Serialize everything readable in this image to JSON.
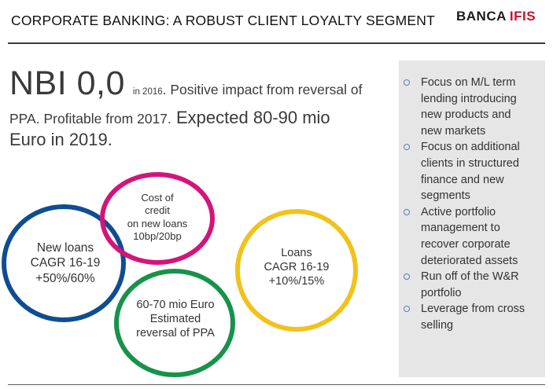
{
  "header": {
    "title": "CORPORATE BANKING: A ROBUST CLIENT LOYALTY SEGMENT",
    "logo_banca": "BANCA",
    "logo_ifis": "IFIS"
  },
  "headline": {
    "nbi": "NBI 0,0",
    "year_note": "in 2016",
    "sentence_1a": ". Positive impact from reversal of",
    "sentence_1b": "PPA. Profitable from 2017.",
    "expected_a": " Expected 80-90 mio",
    "expected_b": "Euro in 2019."
  },
  "circles": {
    "new_loans": {
      "line1": "New loans",
      "line2": "CAGR 16-19",
      "line3": "+50%/60%",
      "color": "#0f4d92"
    },
    "cost_of_credit": {
      "line1": "Cost of",
      "line2": "credit",
      "line3": "on new loans",
      "line4": "10bp/20bp",
      "color": "#d4147a"
    },
    "loans": {
      "line1": "Loans",
      "line2": "CAGR 16-19",
      "line3": "+10%/15%",
      "color": "#f2c21b"
    },
    "reversal": {
      "line1": "60-70 mio Euro",
      "line2": "Estimated",
      "line3": "reversal  of PPA",
      "color": "#17924a"
    }
  },
  "panel": {
    "bullets": [
      [
        "Focus on M/L term",
        "lending introducing",
        "new products and",
        "new markets"
      ],
      [
        "Focus on additional",
        "clients in structured",
        "finance and new",
        "segments"
      ],
      [
        "Active portfolio",
        "management to",
        "recover corporate",
        "deteriorated assets"
      ],
      [
        "Run off of the W&R",
        "portfolio"
      ],
      [
        "Leverage from cross",
        "selling"
      ]
    ]
  }
}
